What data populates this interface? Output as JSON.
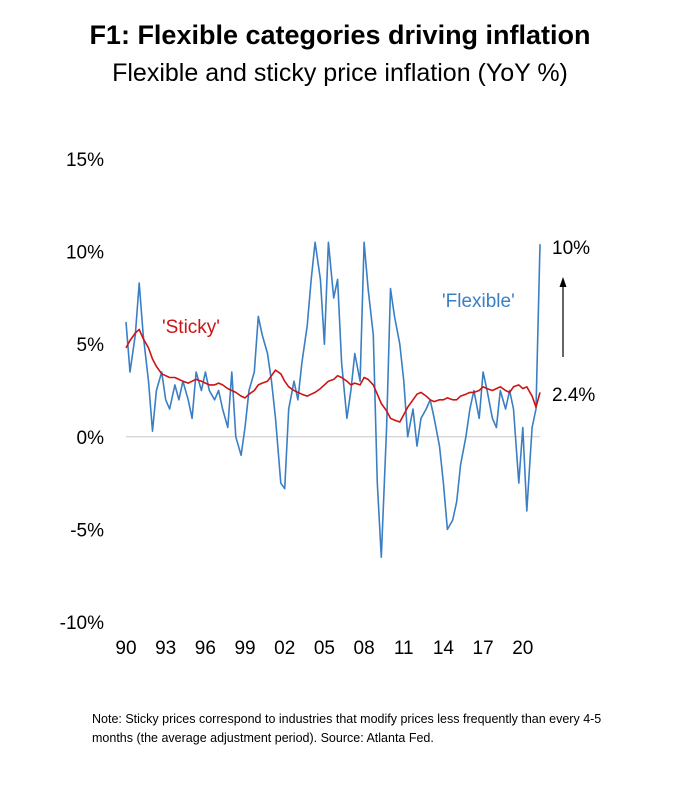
{
  "title": "F1: Flexible categories driving inflation",
  "subtitle": "Flexible and sticky price inflation (YoY %)",
  "note": "Note: Sticky prices correspond to industries that modify prices less frequently than every 4-5 months (the average adjustment period). Source: Atlanta Fed.",
  "colors": {
    "flexible": "#3a7fc4",
    "sticky": "#cc1414",
    "zero_line": "#c8c8c8"
  },
  "chart_data": {
    "type": "line",
    "title": "Flexible and sticky price inflation (YoY %)",
    "ylim": [
      -10,
      15
    ],
    "xlim": [
      1990,
      2021.5
    ],
    "y_ticks": [
      15,
      10,
      5,
      0,
      -5,
      -10
    ],
    "y_tick_labels": [
      "15%",
      "10%",
      "5%",
      "0%",
      "-5%",
      "-10%"
    ],
    "x_ticks": [
      1990,
      1993,
      1996,
      1999,
      2002,
      2005,
      2008,
      2011,
      2014,
      2017,
      2020
    ],
    "x_tick_labels": [
      "90",
      "93",
      "96",
      "99",
      "02",
      "05",
      "08",
      "11",
      "14",
      "17",
      "20"
    ],
    "grid": false,
    "annotations": [
      {
        "text": "'Sticky'",
        "series": "Sticky"
      },
      {
        "text": "'Flexible'",
        "series": "Flexible"
      },
      {
        "text": "10%",
        "note": "latest flexible value"
      },
      {
        "text": "2.4%",
        "note": "latest sticky value"
      }
    ],
    "series": [
      {
        "name": "Flexible",
        "x": [
          1990.0,
          1990.3,
          1990.7,
          1991.0,
          1991.3,
          1991.7,
          1992.0,
          1992.3,
          1992.7,
          1993.0,
          1993.3,
          1993.7,
          1994.0,
          1994.3,
          1994.7,
          1995.0,
          1995.3,
          1995.7,
          1996.0,
          1996.3,
          1996.7,
          1997.0,
          1997.3,
          1997.7,
          1998.0,
          1998.3,
          1998.7,
          1999.0,
          1999.3,
          1999.7,
          2000.0,
          2000.3,
          2000.7,
          2001.0,
          2001.3,
          2001.7,
          2002.0,
          2002.3,
          2002.7,
          2003.0,
          2003.3,
          2003.7,
          2004.0,
          2004.3,
          2004.7,
          2005.0,
          2005.3,
          2005.7,
          2006.0,
          2006.3,
          2006.7,
          2007.0,
          2007.3,
          2007.7,
          2008.0,
          2008.3,
          2008.7,
          2009.0,
          2009.3,
          2009.7,
          2010.0,
          2010.3,
          2010.7,
          2011.0,
          2011.3,
          2011.7,
          2012.0,
          2012.3,
          2012.7,
          2013.0,
          2013.3,
          2013.7,
          2014.0,
          2014.3,
          2014.7,
          2015.0,
          2015.3,
          2015.7,
          2016.0,
          2016.3,
          2016.7,
          2017.0,
          2017.3,
          2017.7,
          2018.0,
          2018.3,
          2018.7,
          2019.0,
          2019.3,
          2019.7,
          2020.0,
          2020.3,
          2020.7,
          2021.0,
          2021.3
        ],
        "values": [
          6.2,
          3.5,
          5.5,
          8.3,
          5.5,
          3.0,
          0.3,
          2.5,
          3.5,
          2.0,
          1.5,
          2.8,
          2.0,
          3.0,
          2.0,
          1.0,
          3.5,
          2.5,
          3.5,
          2.5,
          2.0,
          2.5,
          1.5,
          0.5,
          3.5,
          0.0,
          -1.0,
          0.5,
          2.5,
          3.5,
          6.5,
          5.5,
          4.5,
          3.0,
          1.0,
          -2.5,
          -2.8,
          1.5,
          3.0,
          2.0,
          4.0,
          6.0,
          8.5,
          10.5,
          8.5,
          5.0,
          10.5,
          7.5,
          8.5,
          4.0,
          1.0,
          2.5,
          4.5,
          3.0,
          10.5,
          8.0,
          5.5,
          -2.5,
          -6.5,
          0.5,
          8.0,
          6.5,
          5.0,
          3.0,
          0.0,
          1.5,
          -0.5,
          1.0,
          1.5,
          2.0,
          1.0,
          -0.5,
          -2.5,
          -5.0,
          -4.5,
          -3.5,
          -1.5,
          0.0,
          1.5,
          2.5,
          1.0,
          3.5,
          2.5,
          1.0,
          0.5,
          2.5,
          1.5,
          2.5,
          1.5,
          -2.5,
          0.5,
          -4.0,
          0.5,
          1.5,
          10.4
        ]
      },
      {
        "name": "Sticky",
        "x": [
          1990.0,
          1990.3,
          1990.7,
          1991.0,
          1991.3,
          1991.7,
          1992.0,
          1992.3,
          1992.7,
          1993.0,
          1993.3,
          1993.7,
          1994.0,
          1994.3,
          1994.7,
          1995.0,
          1995.3,
          1995.7,
          1996.0,
          1996.3,
          1996.7,
          1997.0,
          1997.3,
          1997.7,
          1998.0,
          1998.3,
          1998.7,
          1999.0,
          1999.3,
          1999.7,
          2000.0,
          2000.3,
          2000.7,
          2001.0,
          2001.3,
          2001.7,
          2002.0,
          2002.3,
          2002.7,
          2003.0,
          2003.3,
          2003.7,
          2004.0,
          2004.3,
          2004.7,
          2005.0,
          2005.3,
          2005.7,
          2006.0,
          2006.3,
          2006.7,
          2007.0,
          2007.3,
          2007.7,
          2008.0,
          2008.3,
          2008.7,
          2009.0,
          2009.3,
          2009.7,
          2010.0,
          2010.3,
          2010.7,
          2011.0,
          2011.3,
          2011.7,
          2012.0,
          2012.3,
          2012.7,
          2013.0,
          2013.3,
          2013.7,
          2014.0,
          2014.3,
          2014.7,
          2015.0,
          2015.3,
          2015.7,
          2016.0,
          2016.3,
          2016.7,
          2017.0,
          2017.3,
          2017.7,
          2018.0,
          2018.3,
          2018.7,
          2019.0,
          2019.3,
          2019.7,
          2020.0,
          2020.3,
          2020.7,
          2021.0,
          2021.3
        ],
        "values": [
          4.8,
          5.2,
          5.6,
          5.8,
          5.3,
          4.8,
          4.2,
          3.8,
          3.4,
          3.3,
          3.2,
          3.2,
          3.1,
          3.0,
          2.9,
          3.0,
          3.1,
          3.0,
          2.9,
          2.8,
          2.8,
          2.9,
          2.8,
          2.6,
          2.5,
          2.4,
          2.2,
          2.1,
          2.3,
          2.5,
          2.8,
          2.9,
          3.0,
          3.3,
          3.6,
          3.4,
          3.0,
          2.7,
          2.5,
          2.4,
          2.3,
          2.2,
          2.3,
          2.4,
          2.6,
          2.8,
          3.0,
          3.1,
          3.3,
          3.2,
          3.0,
          2.8,
          2.9,
          2.8,
          3.2,
          3.1,
          2.8,
          2.3,
          1.8,
          1.4,
          1.0,
          0.9,
          0.8,
          1.2,
          1.6,
          2.0,
          2.3,
          2.4,
          2.2,
          2.0,
          1.9,
          2.0,
          2.0,
          2.1,
          2.0,
          2.0,
          2.2,
          2.3,
          2.4,
          2.4,
          2.5,
          2.7,
          2.6,
          2.5,
          2.6,
          2.7,
          2.5,
          2.4,
          2.7,
          2.8,
          2.6,
          2.7,
          2.2,
          1.6,
          2.4
        ]
      }
    ]
  }
}
